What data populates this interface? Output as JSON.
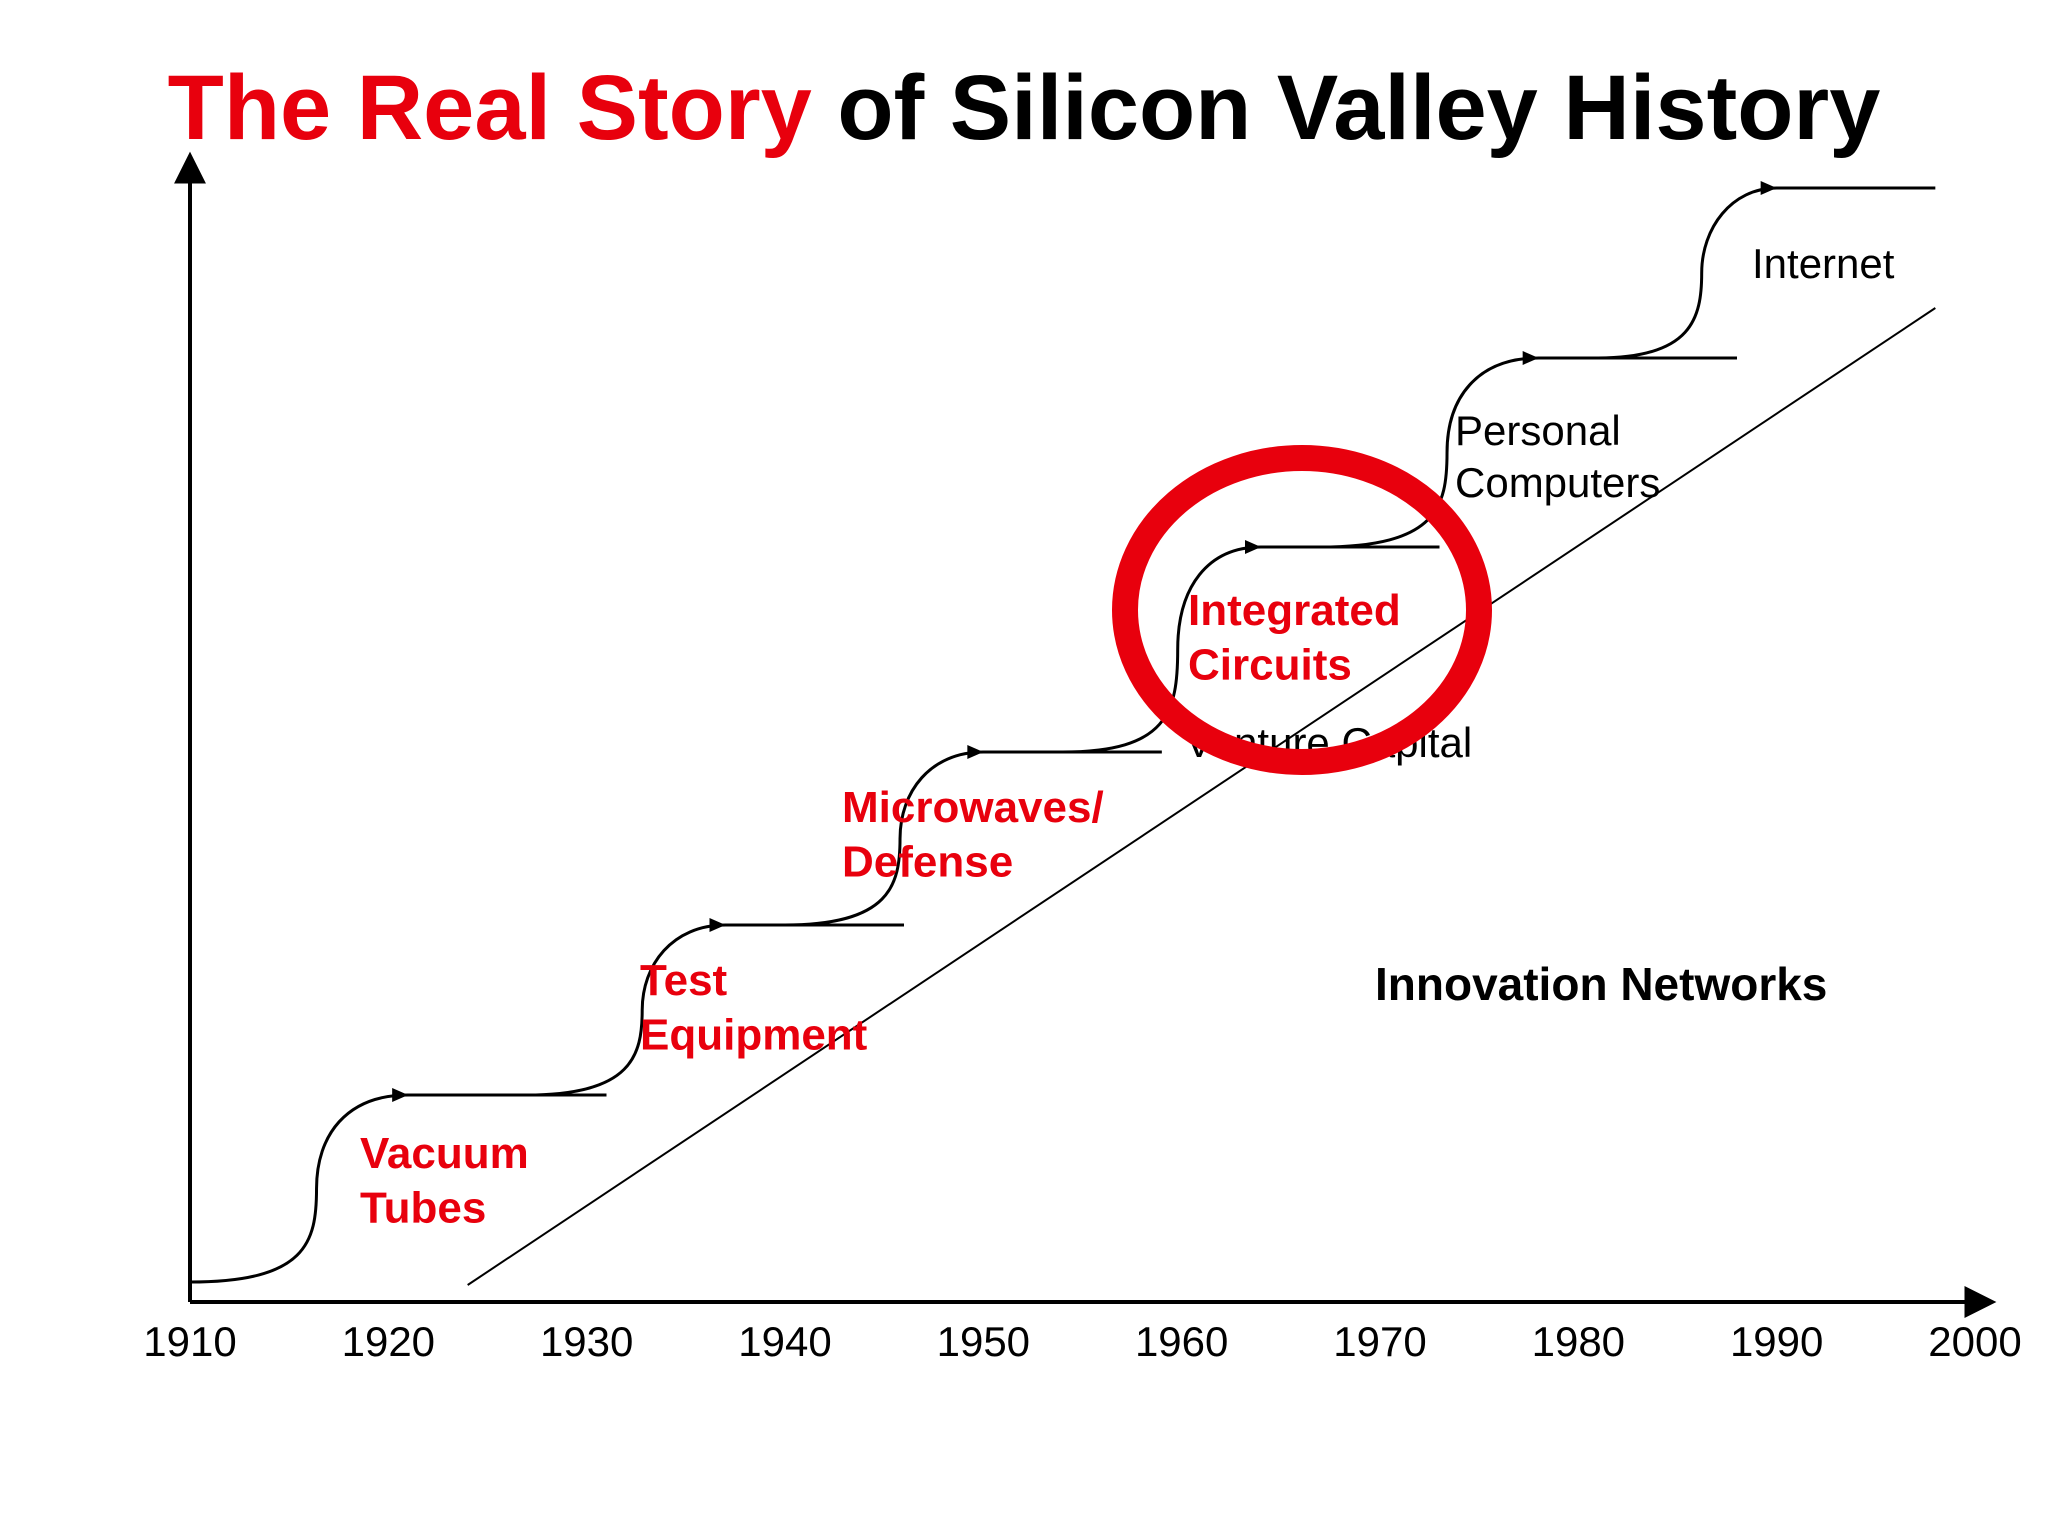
{
  "slide": {
    "title_highlight": "The Real Story",
    "title_rest": " of Silicon Valley History",
    "colors": {
      "accent": "#e8000d",
      "ink": "#000000",
      "background": "#ffffff"
    }
  },
  "chart_data": {
    "type": "line",
    "xlabel": "",
    "ylabel": "",
    "x_ticks": [
      "1910",
      "1920",
      "1930",
      "1940",
      "1950",
      "1960",
      "1970",
      "1980",
      "1990",
      "2000"
    ],
    "xlim": [
      1910,
      2000
    ],
    "grid": false,
    "stages": [
      {
        "name": "Vacuum Tubes",
        "lines": [
          "Vacuum",
          "Tubes"
        ],
        "color": "#e8000d",
        "bold": true,
        "start_year": 1910,
        "plateau_year": 1921,
        "end_year": 1931
      },
      {
        "name": "Test Equipment",
        "lines": [
          "Test",
          "Equipment"
        ],
        "color": "#e8000d",
        "bold": true,
        "start_year": 1927,
        "plateau_year": 1937,
        "end_year": 1946
      },
      {
        "name": "Microwaves/ Defense",
        "lines": [
          "Microwaves/",
          "Defense"
        ],
        "color": "#e8000d",
        "bold": true,
        "start_year": 1940,
        "plateau_year": 1950,
        "end_year": 1959
      },
      {
        "name": "Integrated Circuits",
        "lines": [
          "Integrated",
          "Circuits"
        ],
        "color": "#e8000d",
        "bold": true,
        "start_year": 1954,
        "plateau_year": 1964,
        "end_year": 1973
      },
      {
        "name": "Personal Computers",
        "lines": [
          "Personal",
          "Computers"
        ],
        "color": "#000000",
        "bold": false,
        "start_year": 1967,
        "plateau_year": 1978,
        "end_year": 1988
      },
      {
        "name": "Internet",
        "lines": [
          "Internet"
        ],
        "color": "#000000",
        "bold": false,
        "start_year": 1981,
        "plateau_year": 1990,
        "end_year": 1998
      }
    ],
    "trend_line": {
      "name": "Venture Capital",
      "start_year": 1924,
      "end_year": 1998
    },
    "series_label": "Innovation Networks",
    "highlight": "Integrated Circuits"
  }
}
